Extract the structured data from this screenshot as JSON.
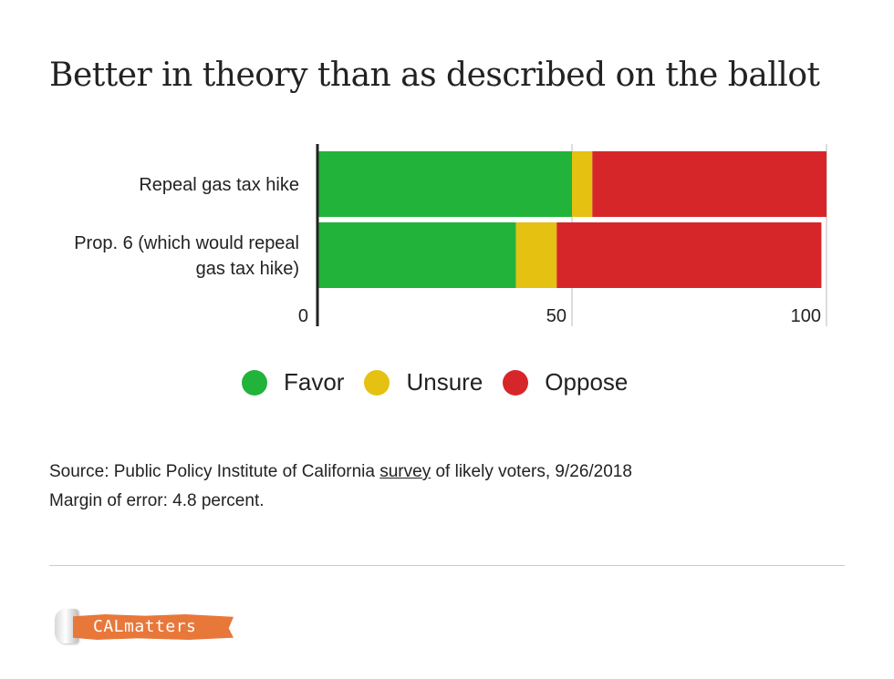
{
  "title": "Better in theory than as described on the ballot",
  "chart_data": {
    "type": "bar",
    "orientation": "horizontal",
    "stacked": true,
    "categories": [
      "Repeal gas tax hike",
      "Prop. 6 (which would repeal gas tax hike)"
    ],
    "category_lines": [
      [
        "Repeal gas tax hike"
      ],
      [
        "Prop. 6 (which would repeal",
        "gas tax hike)"
      ]
    ],
    "series": [
      {
        "name": "Favor",
        "color": "#21b33a",
        "values": [
          50,
          39
        ]
      },
      {
        "name": "Unsure",
        "color": "#e5c111",
        "values": [
          4,
          8
        ]
      },
      {
        "name": "Oppose",
        "color": "#d7262a",
        "values": [
          46,
          52
        ]
      }
    ],
    "x_ticks": [
      0,
      50,
      100
    ],
    "xlim": [
      0,
      100
    ],
    "grid": true,
    "legend_position": "bottom"
  },
  "legend": {
    "items": [
      {
        "label": "Favor",
        "color": "#21b33a"
      },
      {
        "label": "Unsure",
        "color": "#e5c111"
      },
      {
        "label": "Oppose",
        "color": "#d7262a"
      }
    ]
  },
  "source": {
    "prefix": "Source: Public Policy Institute of California ",
    "link_text": "survey",
    "suffix": " of likely voters, 9/26/2018",
    "margin": "Margin of error: 4.8 percent."
  },
  "logo": {
    "text": "CALmatters"
  }
}
